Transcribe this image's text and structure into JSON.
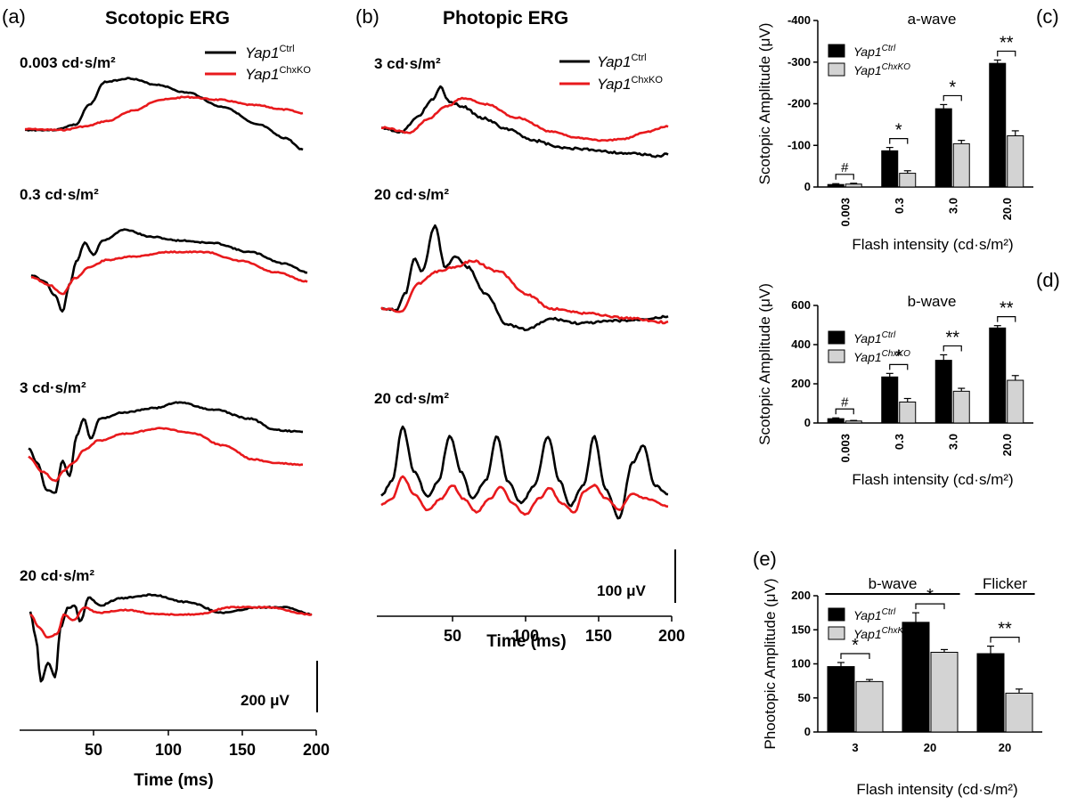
{
  "panels": {
    "a": {
      "letter": "(a)",
      "title": "Scotopic ERG",
      "flash_labels": [
        "0.003 cd·s/m²",
        "0.3 cd·s/m²",
        "3 cd·s/m²",
        "20 cd·s/m²"
      ],
      "scale_bar": "200 μV",
      "x_ticks": [
        "50",
        "100",
        "150",
        "200"
      ],
      "xlabel": "Time (ms)",
      "legend": [
        {
          "name": "Yap1",
          "sup": "Ctrl",
          "color": "#000000"
        },
        {
          "name": "Yap1",
          "sup": "ChxKO",
          "color": "#e8191c"
        }
      ]
    },
    "b": {
      "letter": "(b)",
      "title": "Photopic ERG",
      "flash_labels": [
        "3 cd·s/m²",
        "20 cd·s/m²",
        "20 cd·s/m²"
      ],
      "scale_bar": "100 μV",
      "x_ticks": [
        "50",
        "100",
        "150",
        "200"
      ],
      "xlabel": "Time (ms)",
      "legend": [
        {
          "name": "Yap1",
          "sup": "Ctrl",
          "color": "#000000"
        },
        {
          "name": "Yap1",
          "sup": "ChxKO",
          "color": "#e8191c"
        }
      ]
    }
  },
  "colors": {
    "ctrl": "#000000",
    "ko": "#e8191c",
    "ko_bar": "#d3d3d3"
  },
  "chart_data": [
    {
      "id": "c",
      "letter": "(c)",
      "type": "bar",
      "title": "a-wave",
      "ylabel": "Scotopic Amplitude (μV)",
      "xlabel": "Flash intensity (cd·s/m²)",
      "ylim": [
        0,
        -400
      ],
      "y_ticks": [
        "0",
        "-100",
        "-200",
        "-300",
        "-400"
      ],
      "categories": [
        "0.003",
        "0.3",
        "3.0",
        "20.0"
      ],
      "category_label_rotation": "vertical",
      "series": [
        {
          "name": "Yap1",
          "sup": "Ctrl",
          "values": [
            -6,
            -87,
            -188,
            -297
          ],
          "errors": [
            2,
            8,
            10,
            8
          ]
        },
        {
          "name": "Yap1",
          "sup": "ChxKO",
          "values": [
            -7,
            -33,
            -104,
            -123
          ],
          "errors": [
            2,
            6,
            8,
            12
          ]
        }
      ],
      "significance": [
        "#",
        "*",
        "*",
        "**"
      ],
      "legend_position": "top-left"
    },
    {
      "id": "d",
      "letter": "(d)",
      "type": "bar",
      "title": "b-wave",
      "ylabel": "Scotopic Amplitude (μV)",
      "xlabel": "Flash intensity (cd·s/m²)",
      "ylim": [
        0,
        600
      ],
      "y_ticks": [
        "0",
        "200",
        "400",
        "600"
      ],
      "categories": [
        "0.003",
        "0.3",
        "3.0",
        "20.0"
      ],
      "category_label_rotation": "vertical",
      "series": [
        {
          "name": "Yap1",
          "sup": "Ctrl",
          "values": [
            22,
            235,
            320,
            485
          ],
          "errors": [
            4,
            18,
            28,
            12
          ]
        },
        {
          "name": "Yap1",
          "sup": "ChxKO",
          "values": [
            10,
            107,
            162,
            218
          ],
          "errors": [
            3,
            18,
            15,
            24
          ]
        }
      ],
      "significance": [
        "#",
        "*",
        "**",
        "**"
      ],
      "legend_position": "top-left"
    },
    {
      "id": "e",
      "letter": "(e)",
      "type": "bar",
      "title": "",
      "ylabel": "Phootopic Amplitude (μV)",
      "xlabel": "Flash intensity (cd·s/m²)",
      "ylim": [
        0,
        200
      ],
      "y_ticks": [
        "0",
        "50",
        "100",
        "150",
        "200"
      ],
      "categories": [
        "3",
        "20",
        "20"
      ],
      "group_labels": [
        {
          "text": "b-wave",
          "span": [
            0,
            1
          ]
        },
        {
          "text": "Flicker",
          "span": [
            2,
            2
          ]
        }
      ],
      "series": [
        {
          "name": "Yap1",
          "sup": "Ctrl",
          "values": [
            96,
            161,
            115
          ],
          "errors": [
            6,
            14,
            11
          ]
        },
        {
          "name": "Yap1",
          "sup": "ChxKO",
          "values": [
            74,
            117,
            57
          ],
          "errors": [
            3,
            4,
            6
          ]
        }
      ],
      "significance": [
        "*",
        "*",
        "**"
      ],
      "legend_position": "top-left"
    }
  ]
}
